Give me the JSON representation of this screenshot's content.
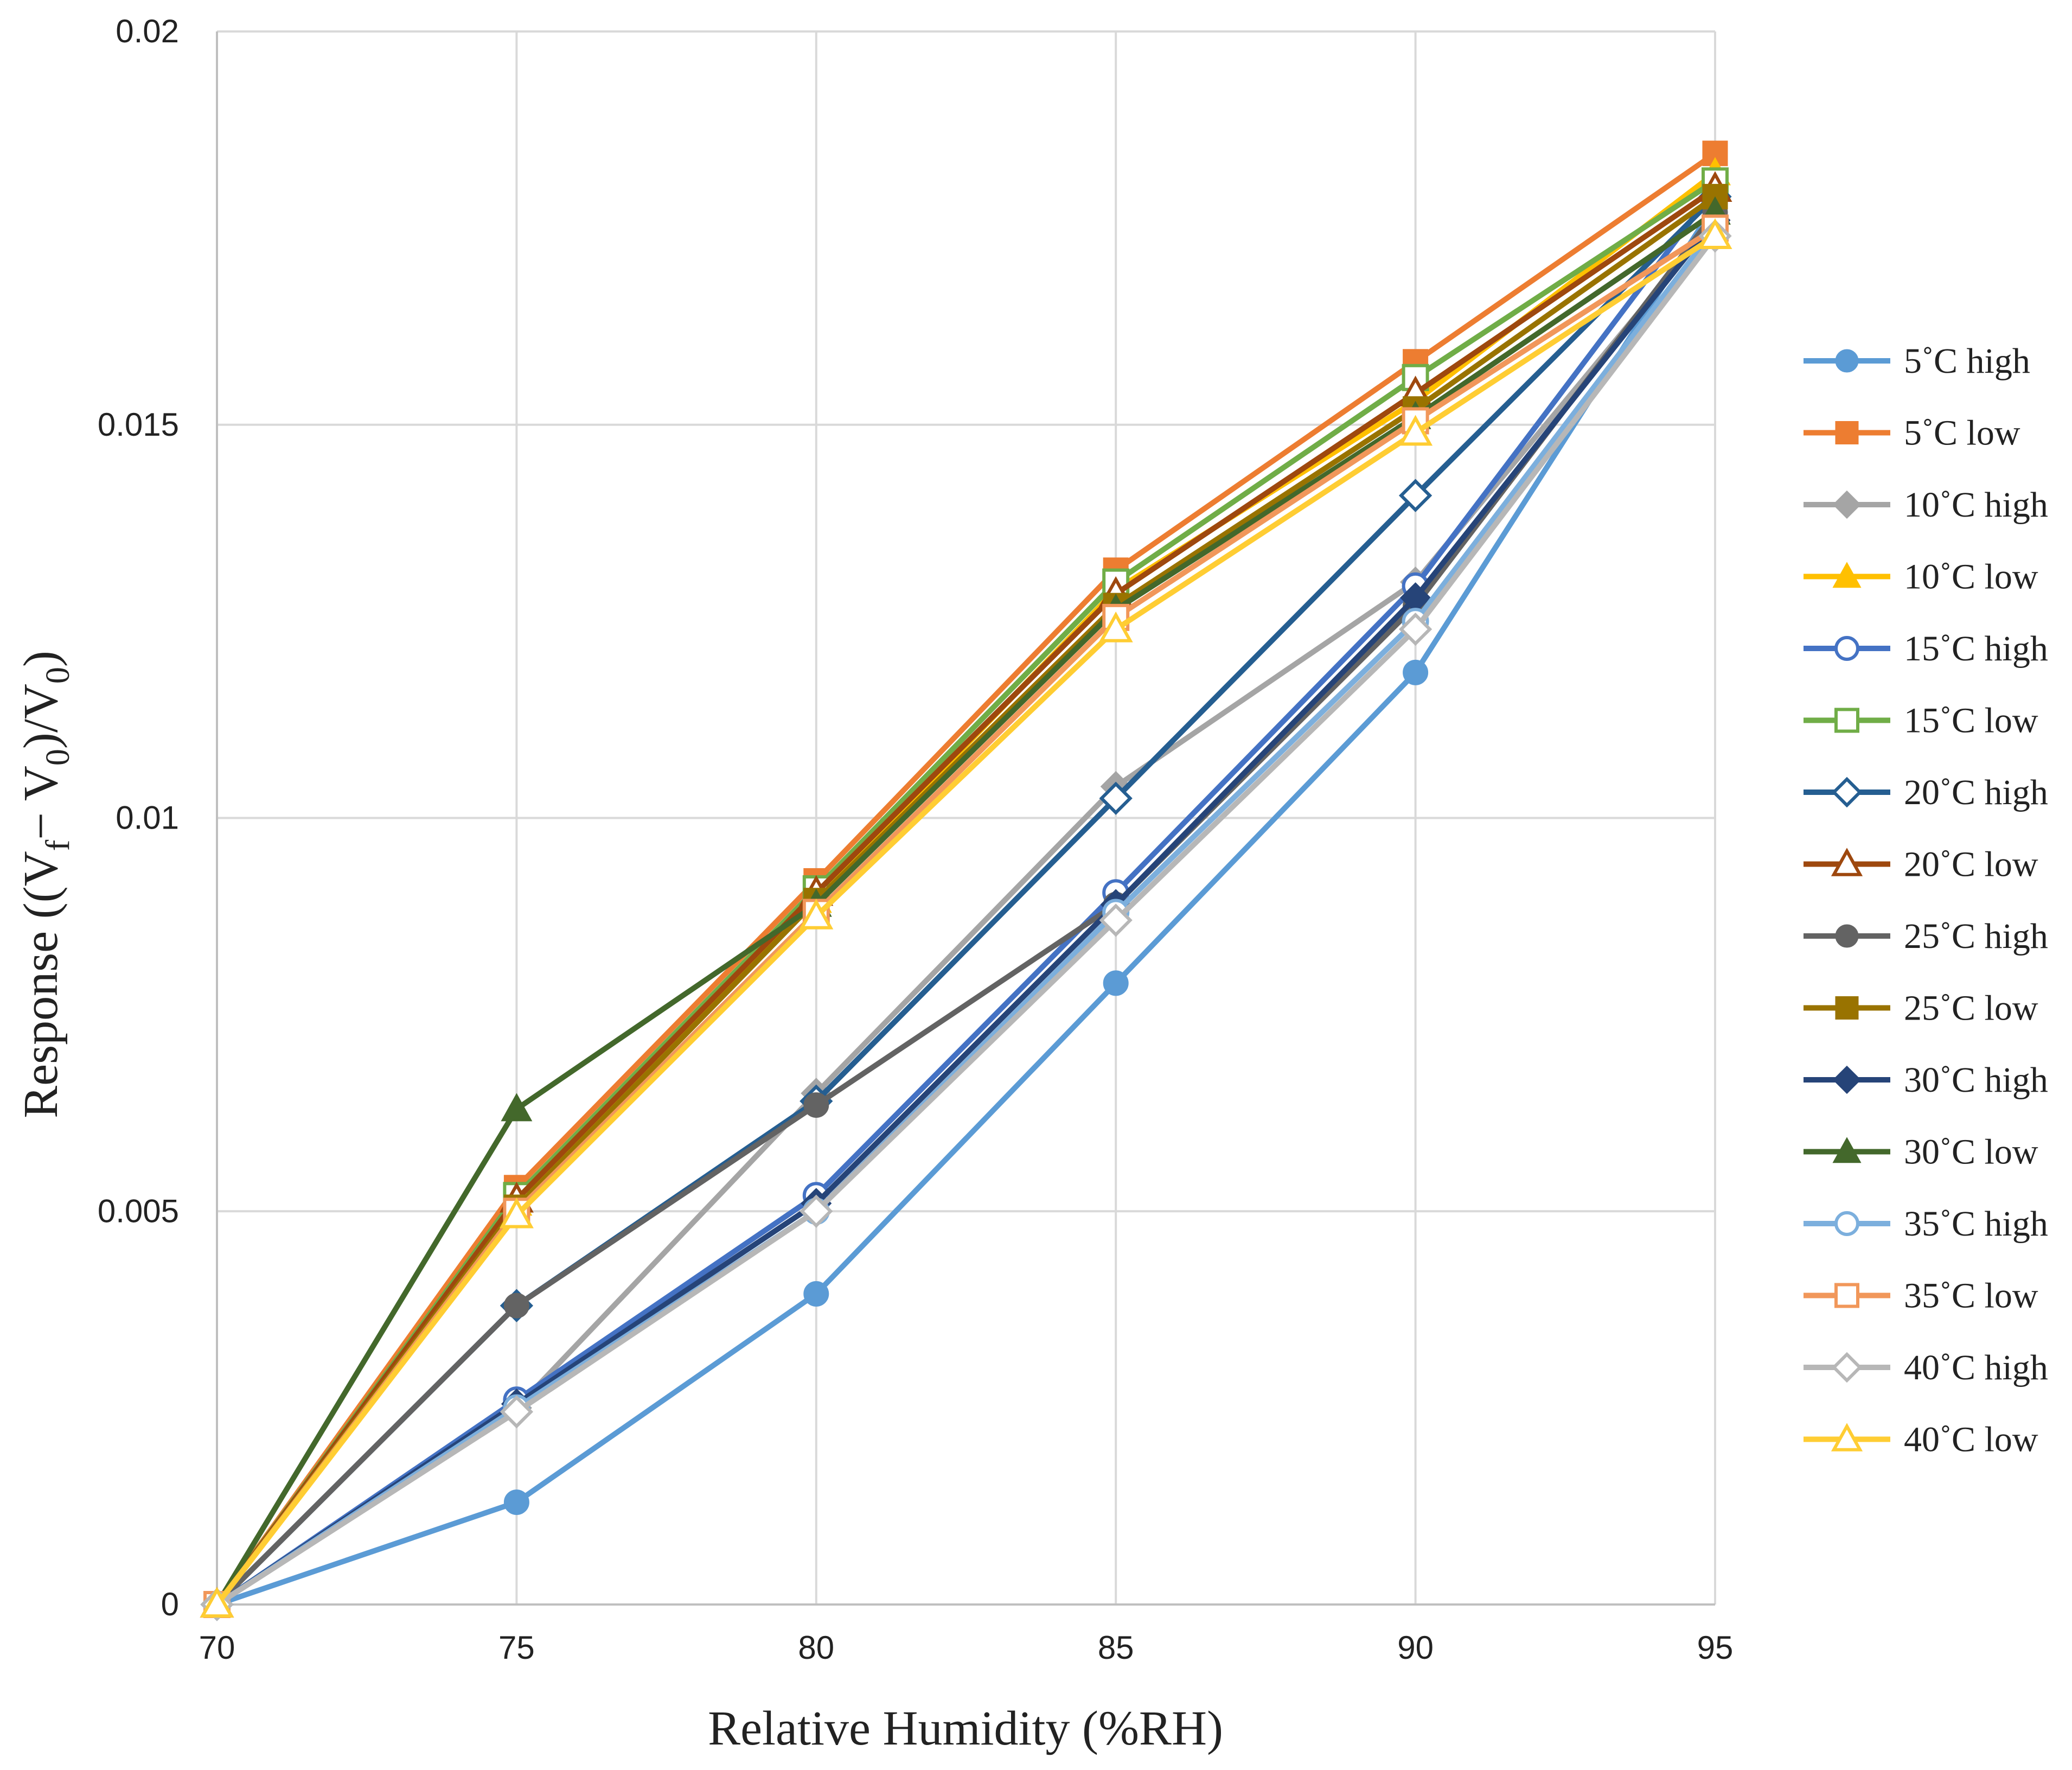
{
  "chart_data": {
    "type": "line",
    "title": "",
    "xlabel": "Relative Humidity (%RH)",
    "ylabel": {
      "prefix": "Response ((V",
      "sub1": "f",
      "mid": "− V",
      "sub2": "0",
      "mid2": ")/V",
      "sub3": "0",
      "suffix": ")"
    },
    "x": [
      70,
      75,
      80,
      85,
      90,
      95
    ],
    "x_tick_labels": [
      "70",
      "75",
      "80",
      "85",
      "90",
      "95"
    ],
    "y_tick_labels": [
      "0",
      "0.005",
      "0.01",
      "0.015",
      "0.02"
    ],
    "y_ticks": [
      0,
      0.005,
      0.01,
      0.015,
      0.02
    ],
    "xlim": [
      70,
      95
    ],
    "ylim": [
      0,
      0.02
    ],
    "grid": true,
    "legend_position": "right",
    "series": [
      {
        "name": "5˚C high",
        "color": "#5B9BD5",
        "marker": "circle",
        "values": [
          0,
          0.0013,
          0.00395,
          0.0079,
          0.01185,
          0.0178
        ]
      },
      {
        "name": "5˚C low",
        "color": "#ED7D31",
        "marker": "square",
        "values": [
          0,
          0.0053,
          0.0092,
          0.01315,
          0.0158,
          0.01845
        ]
      },
      {
        "name": "10˚C high",
        "color": "#A5A5A5",
        "marker": "diamond",
        "values": [
          0,
          0.0025,
          0.0065,
          0.0104,
          0.013,
          0.0176
        ]
      },
      {
        "name": "10˚C low",
        "color": "#FFC000",
        "marker": "triangle",
        "values": [
          0,
          0.0051,
          0.00895,
          0.0129,
          0.0153,
          0.0182
        ]
      },
      {
        "name": "15˚C high",
        "color": "#4472C4",
        "marker": "circle-open",
        "values": [
          0,
          0.0026,
          0.0052,
          0.00905,
          0.01295,
          0.018
        ]
      },
      {
        "name": "15˚C low",
        "color": "#70AD47",
        "marker": "square-open",
        "values": [
          0,
          0.0052,
          0.0091,
          0.013,
          0.0156,
          0.0181
        ]
      },
      {
        "name": "20˚C high",
        "color": "#255E91",
        "marker": "diamond-open",
        "values": [
          0,
          0.0038,
          0.0064,
          0.01025,
          0.0141,
          0.0179
        ]
      },
      {
        "name": "20˚C low",
        "color": "#9E480E",
        "marker": "triangle-open",
        "values": [
          0,
          0.00515,
          0.00905,
          0.01285,
          0.0154,
          0.018
        ]
      },
      {
        "name": "25˚C high",
        "color": "#636363",
        "marker": "circle",
        "values": [
          0,
          0.0038,
          0.00635,
          0.0089,
          0.0127,
          0.0177
        ]
      },
      {
        "name": "25˚C low",
        "color": "#997300",
        "marker": "square",
        "values": [
          0,
          0.00505,
          0.00895,
          0.0127,
          0.0152,
          0.0179
        ]
      },
      {
        "name": "30˚C high",
        "color": "#264478",
        "marker": "diamond",
        "values": [
          0,
          0.00255,
          0.0051,
          0.0089,
          0.0128,
          0.0176
        ]
      },
      {
        "name": "30˚C low",
        "color": "#43682B",
        "marker": "triangle",
        "values": [
          0,
          0.0063,
          0.0089,
          0.01265,
          0.0151,
          0.0177
        ]
      },
      {
        "name": "35˚C high",
        "color": "#7CAFDD",
        "marker": "circle-open",
        "values": [
          0,
          0.0025,
          0.005,
          0.0088,
          0.0125,
          0.0175
        ]
      },
      {
        "name": "35˚C low",
        "color": "#F1975A",
        "marker": "square-open",
        "values": [
          0,
          0.005,
          0.0088,
          0.01255,
          0.01505,
          0.0175
        ]
      },
      {
        "name": "40˚C high",
        "color": "#B7B7B7",
        "marker": "diamond-open",
        "values": [
          0,
          0.00245,
          0.005,
          0.0087,
          0.0124,
          0.0174
        ]
      },
      {
        "name": "40˚C low",
        "color": "#FFCD33",
        "marker": "triangle-open",
        "values": [
          0,
          0.00495,
          0.00875,
          0.0124,
          0.0149,
          0.0174
        ]
      }
    ]
  }
}
